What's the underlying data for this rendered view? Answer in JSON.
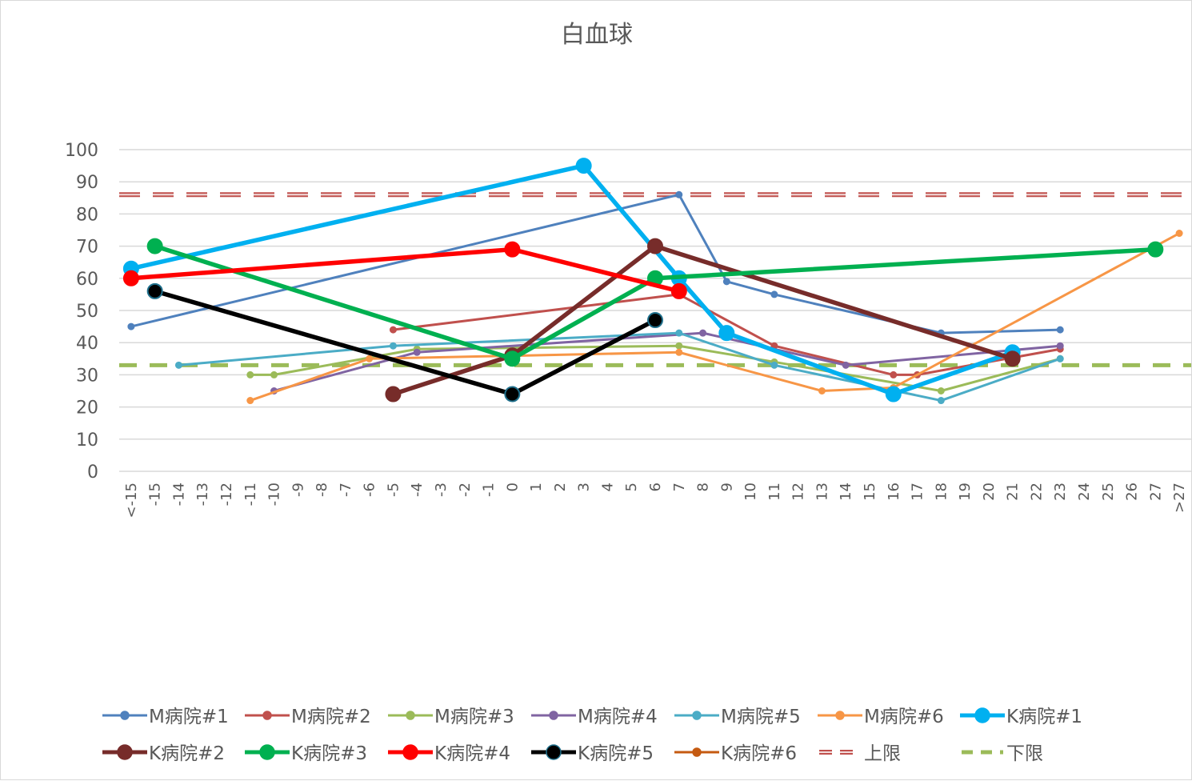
{
  "chart_data": {
    "type": "line",
    "title": "白血球",
    "categories": [
      "<-15",
      "-15",
      "-14",
      "-13",
      "-12",
      "-11",
      "-10",
      "-9",
      "-8",
      "-7",
      "-6",
      "-5",
      "-4",
      "-3",
      "-2",
      "-1",
      "0",
      "1",
      "2",
      "3",
      "4",
      "5",
      "6",
      "7",
      "8",
      "9",
      "10",
      "11",
      "12",
      "13",
      "14",
      "15",
      "16",
      "17",
      "18",
      "19",
      "20",
      "21",
      "22",
      "23",
      "24",
      "25",
      "26",
      "27",
      ">27"
    ],
    "ylim": [
      0,
      100
    ],
    "yticks": [
      0,
      10,
      20,
      30,
      40,
      50,
      60,
      70,
      80,
      90,
      100
    ],
    "grid": true,
    "legend_position": "bottom",
    "series": [
      {
        "name": "M病院#1",
        "color": "#4f81bd",
        "width": 3,
        "marker": 4,
        "points": [
          [
            "<-15",
            45
          ],
          [
            "7",
            86
          ],
          [
            "9",
            59
          ],
          [
            "11",
            55
          ],
          [
            "18",
            43
          ],
          [
            "23",
            44
          ]
        ]
      },
      {
        "name": "M病院#2",
        "color": "#c0504d",
        "width": 3,
        "marker": 4,
        "points": [
          [
            "-5",
            44
          ],
          [
            "7",
            55
          ],
          [
            "11",
            39
          ],
          [
            "16",
            30
          ],
          [
            "17",
            30
          ],
          [
            "23",
            38
          ]
        ]
      },
      {
        "name": "M病院#3",
        "color": "#9bbb59",
        "width": 3,
        "marker": 4,
        "points": [
          [
            "-11",
            30
          ],
          [
            "-10",
            30
          ],
          [
            "-4",
            38
          ],
          [
            "7",
            39
          ],
          [
            "11",
            34
          ],
          [
            "18",
            25
          ],
          [
            "23",
            35
          ]
        ]
      },
      {
        "name": "M病院#4",
        "color": "#8064a2",
        "width": 3,
        "marker": 4,
        "points": [
          [
            "-10",
            25
          ],
          [
            "-4",
            37
          ],
          [
            "8",
            43
          ],
          [
            "14",
            33
          ],
          [
            "23",
            39
          ]
        ]
      },
      {
        "name": "M病院#5",
        "color": "#4bacc6",
        "width": 3,
        "marker": 4,
        "points": [
          [
            "-14",
            33
          ],
          [
            "-5",
            39
          ],
          [
            "7",
            43
          ],
          [
            "11",
            33
          ],
          [
            "18",
            22
          ],
          [
            "23",
            35
          ]
        ]
      },
      {
        "name": "M病院#6",
        "color": "#f79646",
        "width": 3,
        "marker": 4,
        "points": [
          [
            "-11",
            22
          ],
          [
            "-6",
            35
          ],
          [
            "7",
            37
          ],
          [
            "13",
            25
          ],
          [
            "16",
            26
          ],
          [
            ">27",
            74
          ]
        ]
      },
      {
        "name": "K病院#1",
        "color": "#00b0f0",
        "width": 5.5,
        "marker": 9,
        "points": [
          [
            "<-15",
            63
          ],
          [
            "3",
            95
          ],
          [
            "7",
            60
          ],
          [
            "9",
            43
          ],
          [
            "16",
            24
          ],
          [
            "21",
            37
          ]
        ]
      },
      {
        "name": "K病院#2",
        "color": "#772c2a",
        "width": 5.5,
        "marker": 9,
        "points": [
          [
            "-5",
            24
          ],
          [
            "0",
            36
          ],
          [
            "6",
            70
          ],
          [
            "21",
            35
          ]
        ]
      },
      {
        "name": "K病院#3",
        "color": "#00b050",
        "width": 5.5,
        "marker": 9,
        "points": [
          [
            "-15",
            70
          ],
          [
            "0",
            35
          ],
          [
            "6",
            60
          ],
          [
            "27",
            69
          ]
        ]
      },
      {
        "name": "K病院#4",
        "color": "#ff0000",
        "width": 5.5,
        "marker": 9,
        "points": [
          [
            "<-15",
            60
          ],
          [
            "0",
            69
          ],
          [
            "7",
            56
          ]
        ]
      },
      {
        "name": "K病院#5",
        "color": "#000000",
        "width": 5.5,
        "marker": 9,
        "marker_stroke": "#1f6f8b",
        "points": [
          [
            "-15",
            56
          ],
          [
            "0",
            24
          ],
          [
            "6",
            47
          ]
        ]
      },
      {
        "name": "K病院#6",
        "color": "#c55a11",
        "width": 3,
        "marker": 4,
        "points": []
      },
      {
        "name": "上限",
        "color": "#c0504d",
        "width": 5,
        "dash": true,
        "hollow": true,
        "marker": 0,
        "y_const": 86
      },
      {
        "name": "下限",
        "color": "#9bbb59",
        "width": 5,
        "dash": true,
        "marker": 0,
        "y_const": 33
      }
    ]
  }
}
